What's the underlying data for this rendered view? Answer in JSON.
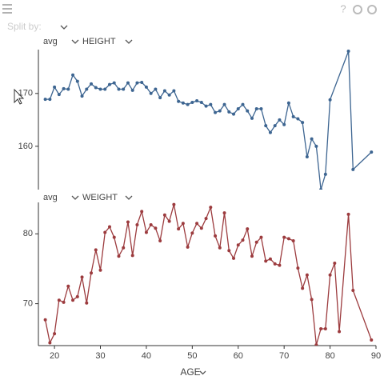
{
  "ui": {
    "split_by": "Split by:",
    "help": "?"
  },
  "chart_data": [
    {
      "type": "line",
      "aggregate": "avg",
      "measure": "HEIGHT",
      "color": "#3d6591",
      "x": [
        18,
        19,
        20,
        21,
        22,
        23,
        24,
        25,
        26,
        27,
        28,
        29,
        30,
        31,
        32,
        33,
        34,
        35,
        36,
        37,
        38,
        39,
        40,
        41,
        42,
        43,
        44,
        45,
        46,
        47,
        48,
        49,
        50,
        51,
        52,
        53,
        54,
        55,
        56,
        57,
        58,
        59,
        60,
        61,
        62,
        63,
        64,
        65,
        66,
        67,
        68,
        69,
        70,
        71,
        72,
        73,
        74,
        75,
        76,
        77,
        78,
        79,
        80,
        84,
        85,
        89
      ],
      "values": [
        168.9,
        168.9,
        171.2,
        169.8,
        170.9,
        170.8,
        173.5,
        172.3,
        169.5,
        170.8,
        171.8,
        171.1,
        170.8,
        170.8,
        171.7,
        172.0,
        170.8,
        170.8,
        172.0,
        170.6,
        172.0,
        172.1,
        171.2,
        170.0,
        170.8,
        169.2,
        170.5,
        169.7,
        170.5,
        168.5,
        168.2,
        167.9,
        168.3,
        168.6,
        168.3,
        167.6,
        167.9,
        166.4,
        166.7,
        167.9,
        166.5,
        166.1,
        167.1,
        167.9,
        166.7,
        165.3,
        167.1,
        167.1,
        163.9,
        162.6,
        163.9,
        165.0,
        164.1,
        168.2,
        165.6,
        165.2,
        164.5,
        158.0,
        161.4,
        160.0,
        151.8,
        154.7,
        168.8,
        178.0,
        155.6,
        158.9
      ],
      "xlim": [
        16.5,
        90
      ],
      "ylim": [
        151.8,
        178.3
      ],
      "yticks": [
        160,
        170
      ]
    },
    {
      "type": "line",
      "aggregate": "avg",
      "measure": "WEIGHT",
      "color": "#9c3b3e",
      "xlabel": "AGE",
      "x": [
        18,
        19,
        20,
        21,
        22,
        23,
        24,
        25,
        26,
        27,
        28,
        29,
        30,
        31,
        32,
        33,
        34,
        35,
        36,
        37,
        38,
        39,
        40,
        41,
        42,
        43,
        44,
        45,
        46,
        47,
        48,
        49,
        50,
        51,
        52,
        53,
        54,
        55,
        56,
        57,
        58,
        59,
        60,
        61,
        62,
        63,
        64,
        65,
        66,
        67,
        68,
        69,
        70,
        71,
        72,
        73,
        74,
        75,
        76,
        77,
        78,
        79,
        80,
        81,
        82,
        84,
        85,
        89
      ],
      "values": [
        67.7,
        64.4,
        65.7,
        70.5,
        70.2,
        72.5,
        70.5,
        71.0,
        73.8,
        70.1,
        74.4,
        77.7,
        74.8,
        80.2,
        81.0,
        79.5,
        76.8,
        78.0,
        81.7,
        76.9,
        81.3,
        83.2,
        80.2,
        81.3,
        80.8,
        79.0,
        82.7,
        81.8,
        84.2,
        80.7,
        81.5,
        78.1,
        80.1,
        81.5,
        80.8,
        82.2,
        83.8,
        79.7,
        78.0,
        83.0,
        77.6,
        76.5,
        78.4,
        79.1,
        80.7,
        76.8,
        78.8,
        79.5,
        76.1,
        76.4,
        75.7,
        75.5,
        79.5,
        79.3,
        79.0,
        75.1,
        72.2,
        74.1,
        70.6,
        64.1,
        66.4,
        66.4,
        74.1,
        75.8,
        66.0,
        82.8,
        71.9,
        64.8
      ],
      "xlim": [
        16.5,
        90
      ],
      "ylim": [
        64,
        84.5
      ],
      "yticks": [
        70,
        80
      ],
      "xticks": [
        20,
        30,
        40,
        50,
        60,
        70,
        80,
        90
      ]
    }
  ]
}
